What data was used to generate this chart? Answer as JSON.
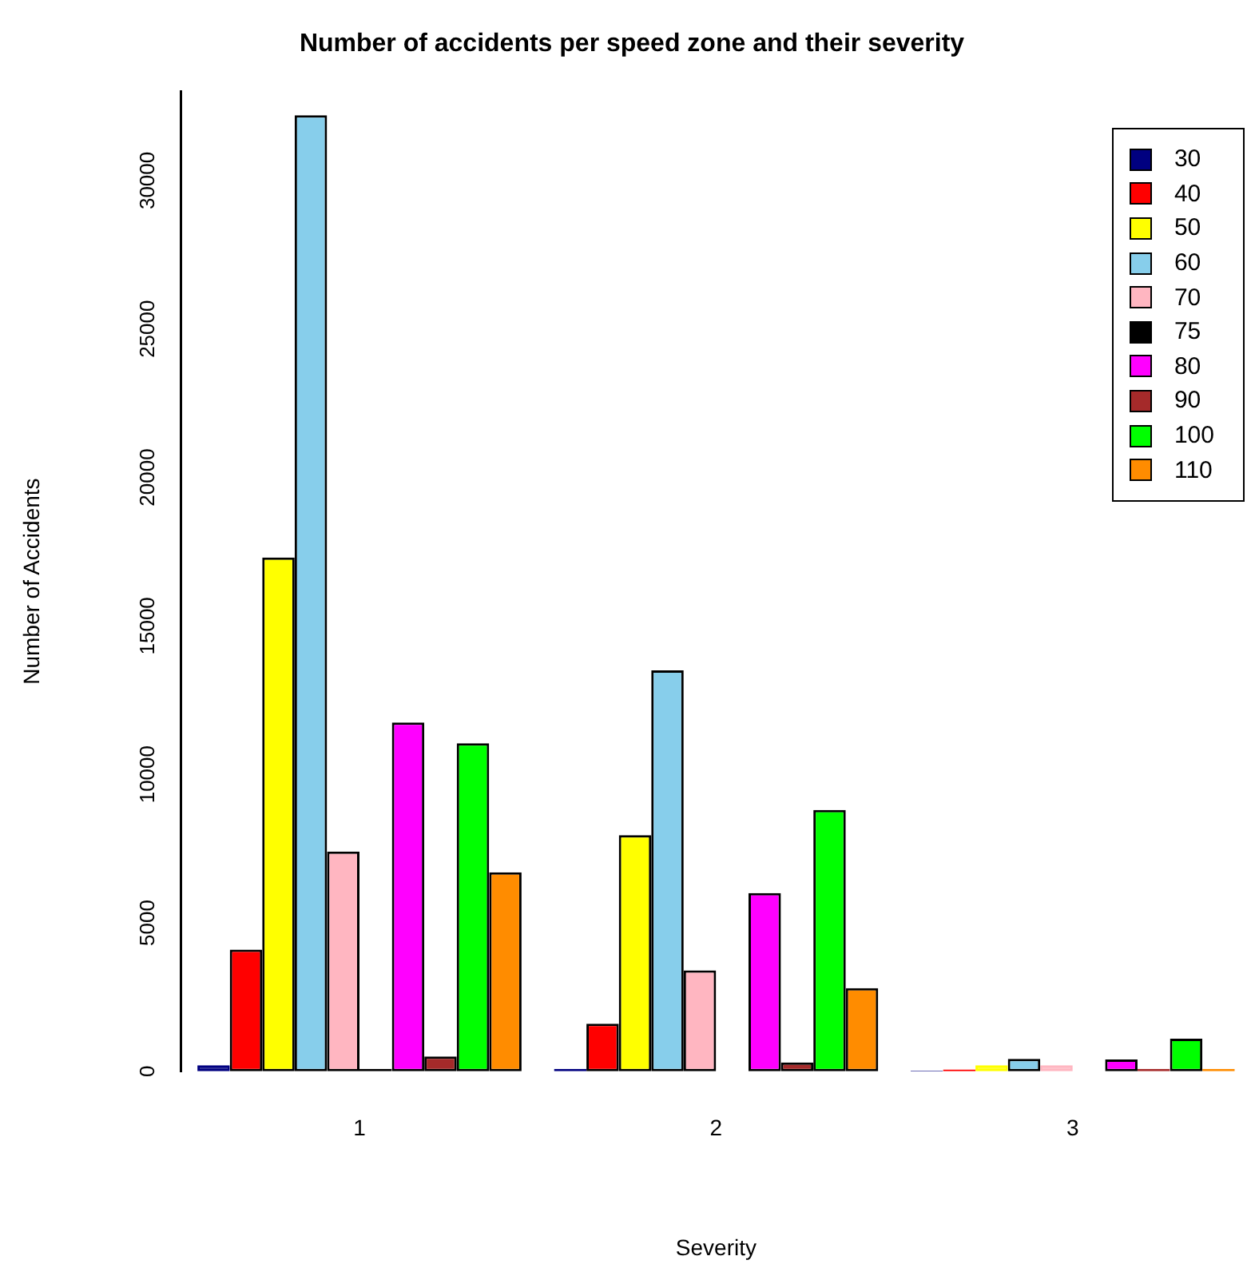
{
  "chart_data": {
    "type": "bar",
    "title": "Number of accidents per speed zone and their severity",
    "xlabel": "Severity",
    "ylabel": "Number of Accidents",
    "categories": [
      "1",
      "2",
      "3"
    ],
    "series": [
      {
        "name": "30",
        "color": "#000080",
        "values": [
          200,
          80,
          20
        ]
      },
      {
        "name": "40",
        "color": "#ff0000",
        "values": [
          4100,
          1600,
          60
        ]
      },
      {
        "name": "50",
        "color": "#ffff00",
        "values": [
          17300,
          7950,
          200
        ]
      },
      {
        "name": "60",
        "color": "#87ceeb",
        "values": [
          32200,
          13500,
          420
        ]
      },
      {
        "name": "70",
        "color": "#ffb6c1",
        "values": [
          7400,
          3400,
          200
        ]
      },
      {
        "name": "75",
        "color": "#000000",
        "values": [
          80,
          null,
          null
        ]
      },
      {
        "name": "80",
        "color": "#ff00ff",
        "values": [
          11750,
          6000,
          400
        ]
      },
      {
        "name": "90",
        "color": "#a52a2a",
        "values": [
          500,
          300,
          80
        ]
      },
      {
        "name": "100",
        "color": "#00ff00",
        "values": [
          11050,
          8800,
          1100
        ]
      },
      {
        "name": "110",
        "color": "#ff8c00",
        "values": [
          6700,
          2800,
          80
        ]
      }
    ],
    "ylim": [
      0,
      33000
    ],
    "yticks": [
      0,
      5000,
      10000,
      15000,
      20000,
      25000,
      30000
    ],
    "grid": false,
    "legend": "top right"
  }
}
